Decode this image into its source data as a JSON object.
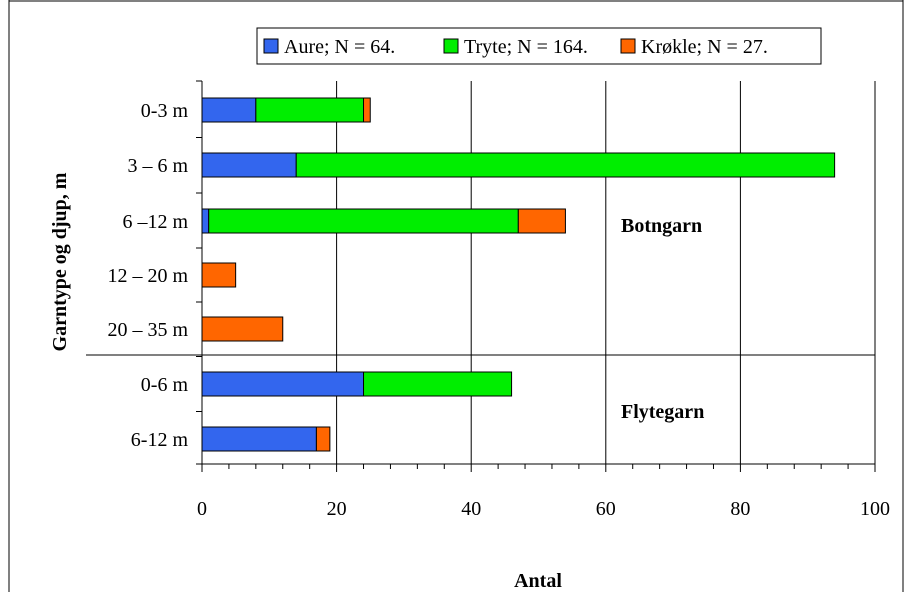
{
  "chart_data": {
    "type": "bar",
    "orientation": "horizontal",
    "stacked": true,
    "categories": [
      "0-3 m",
      "3 – 6 m",
      "6 –12 m",
      "12 – 20 m",
      "20 – 35 m",
      "0-6 m",
      "6-12 m"
    ],
    "series": [
      {
        "name": "Aure; N =  64.",
        "color": "#3366ee",
        "values": [
          8,
          14,
          1,
          0,
          0,
          24,
          17
        ]
      },
      {
        "name": "Tryte; N = 164.",
        "color": "#00ee00",
        "values": [
          16,
          80,
          46,
          0,
          0,
          22,
          0
        ]
      },
      {
        "name": "Krøkle; N =  27.",
        "color": "#ff6600",
        "values": [
          1,
          0,
          7,
          5,
          12,
          0,
          2
        ]
      }
    ],
    "xlabel": "Antal",
    "ylabel": "Garntype og djup, m",
    "xlim": [
      0,
      100
    ],
    "xticks": [
      0,
      20,
      40,
      60,
      80,
      100
    ],
    "grid": "vertical",
    "legend": "top",
    "annotations": [
      "Botngarn",
      "Flytegarn"
    ]
  }
}
